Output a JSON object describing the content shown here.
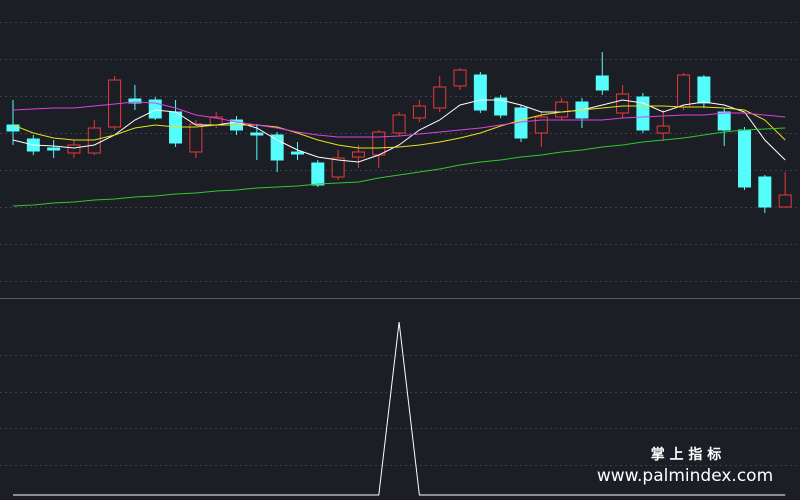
{
  "chart_data": [
    {
      "type": "candlestick",
      "ylim": [
        0,
        300
      ],
      "yticks": [
        19,
        56,
        93,
        130,
        167,
        204,
        241,
        278
      ],
      "grid": true,
      "up_color": "#e8393a",
      "down_color": "#54fcfc",
      "open": [
        175,
        161,
        152,
        147,
        147,
        173,
        201,
        200,
        188,
        148,
        175,
        180,
        167,
        165,
        148,
        137,
        123,
        143,
        145,
        167,
        182,
        192,
        214,
        225,
        202,
        192,
        167,
        183,
        198,
        224,
        187,
        203,
        167,
        193,
        223,
        188,
        170,
        123,
        93
      ],
      "close": [
        169,
        149,
        150,
        155,
        172,
        220,
        197,
        182,
        157,
        176,
        183,
        170,
        165,
        140,
        146,
        115,
        142,
        148,
        168,
        185,
        194,
        213,
        230,
        190,
        185,
        162,
        183,
        198,
        182,
        210,
        206,
        170,
        174,
        225,
        197,
        170,
        113,
        93,
        105
      ],
      "high": [
        200,
        165,
        160,
        160,
        180,
        224,
        215,
        203,
        200,
        180,
        188,
        184,
        176,
        168,
        158,
        140,
        150,
        155,
        170,
        188,
        200,
        224,
        232,
        228,
        205,
        195,
        188,
        202,
        202,
        248,
        215,
        207,
        190,
        227,
        225,
        192,
        173,
        125,
        128
      ],
      "low": [
        155,
        145,
        142,
        142,
        145,
        170,
        190,
        180,
        153,
        142,
        172,
        165,
        140,
        128,
        140,
        113,
        120,
        132,
        132,
        164,
        178,
        188,
        210,
        187,
        182,
        158,
        153,
        180,
        172,
        205,
        182,
        167,
        159,
        190,
        192,
        154,
        110,
        87,
        93
      ],
      "series": [
        {
          "color": "#ffffff",
          "values": [
            160,
            155,
            154,
            152,
            155,
            165,
            180,
            190,
            188,
            175,
            175,
            178,
            172,
            160,
            150,
            143,
            140,
            138,
            145,
            155,
            170,
            180,
            195,
            200,
            200,
            195,
            188,
            188,
            190,
            195,
            200,
            197,
            188,
            195,
            198,
            195,
            188,
            160,
            140
          ]
        },
        {
          "color": "#e8e020",
          "values": [
            175,
            167,
            162,
            160,
            160,
            165,
            172,
            175,
            173,
            173,
            175,
            175,
            175,
            173,
            167,
            160,
            155,
            152,
            152,
            153,
            155,
            158,
            162,
            167,
            174,
            180,
            185,
            188,
            190,
            192,
            194,
            194,
            194,
            193,
            193,
            192,
            190,
            180,
            160
          ]
        },
        {
          "color": "#e040e0",
          "values": [
            190,
            191,
            192,
            192,
            194,
            196,
            198,
            197,
            192,
            185,
            182,
            178,
            175,
            172,
            168,
            165,
            163,
            163,
            163,
            164,
            166,
            168,
            170,
            172,
            175,
            178,
            180,
            180,
            180,
            180,
            182,
            183,
            184,
            185,
            185,
            187,
            187,
            185,
            183
          ]
        },
        {
          "color": "#30c830",
          "values": [
            94,
            95,
            97,
            98,
            100,
            101,
            103,
            104,
            106,
            107,
            109,
            110,
            112,
            113,
            114,
            116,
            117,
            118,
            122,
            125,
            128,
            131,
            135,
            138,
            140,
            143,
            145,
            148,
            150,
            153,
            155,
            158,
            160,
            162,
            165,
            168,
            170,
            171,
            172
          ]
        }
      ]
    },
    {
      "type": "line",
      "ylim": [
        0,
        195
      ],
      "yticks": [
        30,
        67,
        103,
        140
      ],
      "grid": true,
      "series": [
        {
          "color": "#ffffff",
          "values": [
            0,
            0,
            0,
            0,
            0,
            0,
            0,
            0,
            0,
            0,
            0,
            0,
            0,
            0,
            0,
            0,
            0,
            0,
            0,
            173,
            0,
            0,
            0,
            0,
            0,
            0,
            0,
            0,
            0,
            0,
            0,
            0,
            0,
            0,
            0,
            0,
            0,
            0,
            0
          ]
        }
      ]
    }
  ],
  "watermark": {
    "title": "掌 上 指 标",
    "url": "www.palmindex.com"
  }
}
